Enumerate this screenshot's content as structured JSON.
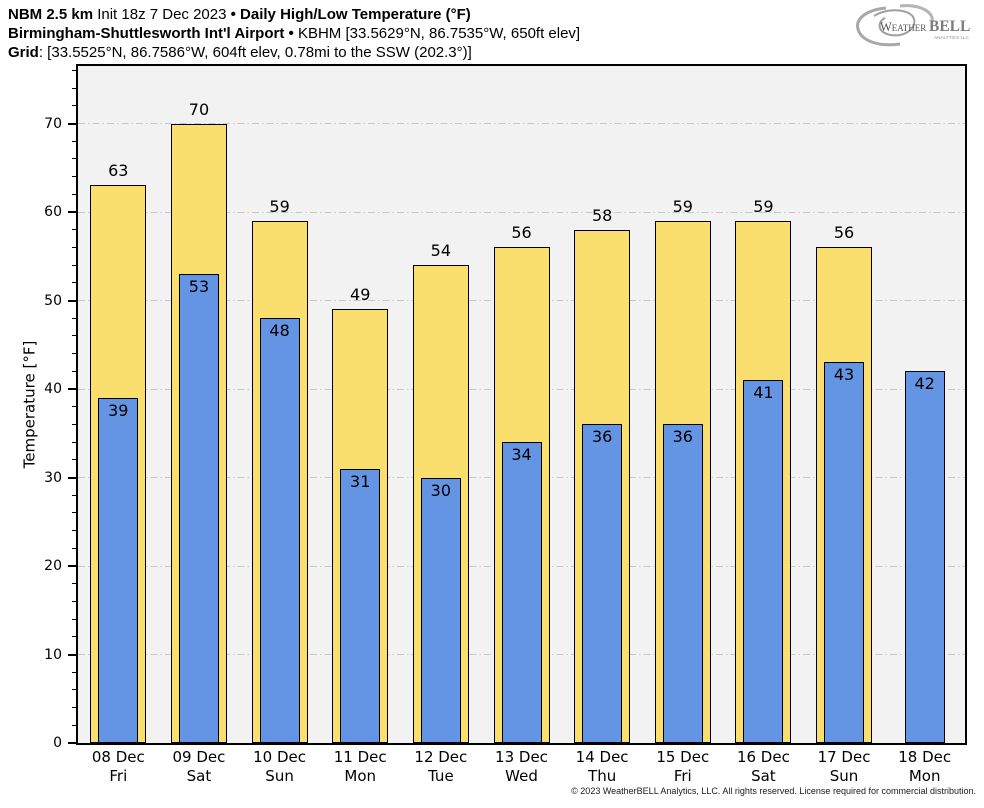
{
  "header": {
    "lines": [
      {
        "segments": [
          {
            "text": "NBM 2.5 km ",
            "bold": true
          },
          {
            "text": "Init 18z 7 Dec 2023 ",
            "bold": false
          },
          {
            "text": "• ",
            "bold": true
          },
          {
            "text": "Daily High/Low Temperature (°F)",
            "bold": true
          }
        ]
      },
      {
        "segments": [
          {
            "text": "Birmingham-Shuttlesworth Int'l Airport ",
            "bold": true
          },
          {
            "text": "• ",
            "bold": true
          },
          {
            "text": "KBHM [33.5629°N, 86.7535°W, 650ft elev]",
            "bold": false
          }
        ]
      },
      {
        "segments": [
          {
            "text": "Grid",
            "bold": true
          },
          {
            "text": ": [33.5525°N, 86.7586°W, 604ft elev, 0.78mi to the SSW (202.3°)]",
            "bold": false
          }
        ]
      }
    ]
  },
  "logo": {
    "text_weather": "Weather",
    "text_bell": "BELL",
    "text_sub": "ANALYTICS LLC"
  },
  "footer": {
    "copyright": "© 2023 WeatherBELL Analytics, LLC. All rights reserved. License required for commercial distribution."
  },
  "chart_data": {
    "type": "bar",
    "title": "Daily High/Low Temperature (°F)",
    "ylabel": "Temperature [°F]",
    "xlabel": "",
    "ylim": [
      0,
      76.5
    ],
    "yticks": [
      0,
      10,
      20,
      30,
      40,
      50,
      60,
      70
    ],
    "minor_tick_step": 2,
    "grid": true,
    "legend_position": "none",
    "categories": [
      {
        "date": "08 Dec",
        "day": "Fri"
      },
      {
        "date": "09 Dec",
        "day": "Sat"
      },
      {
        "date": "10 Dec",
        "day": "Sun"
      },
      {
        "date": "11 Dec",
        "day": "Mon"
      },
      {
        "date": "12 Dec",
        "day": "Tue"
      },
      {
        "date": "13 Dec",
        "day": "Wed"
      },
      {
        "date": "14 Dec",
        "day": "Thu"
      },
      {
        "date": "15 Dec",
        "day": "Fri"
      },
      {
        "date": "16 Dec",
        "day": "Sat"
      },
      {
        "date": "17 Dec",
        "day": "Sun"
      },
      {
        "date": "18 Dec",
        "day": "Mon"
      }
    ],
    "series": [
      {
        "name": "High",
        "values": [
          63,
          70,
          59,
          49,
          54,
          56,
          58,
          59,
          59,
          56,
          null
        ]
      },
      {
        "name": "Low",
        "values": [
          39,
          53,
          48,
          31,
          30,
          34,
          36,
          36,
          41,
          43,
          42
        ]
      }
    ],
    "colors": {
      "high_bar": "#fbdf6e",
      "low_bar": "#6494e4",
      "bar_border": "#000000",
      "plot_background": "#f2f2f2",
      "grid_line": "#c7c7c7"
    }
  }
}
